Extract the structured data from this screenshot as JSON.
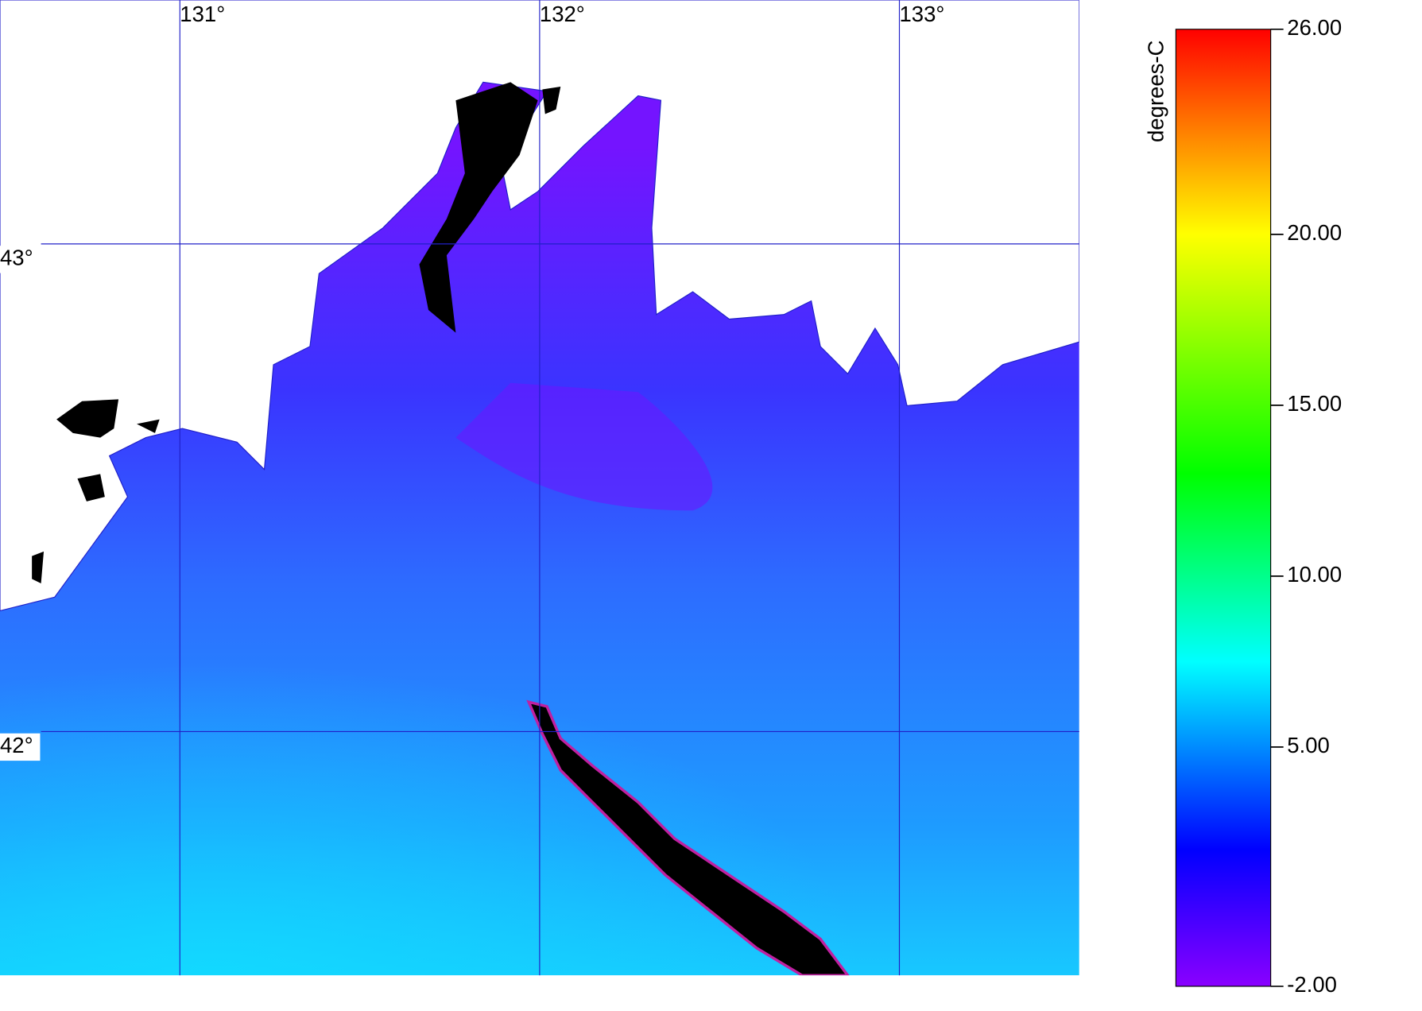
{
  "chart_data": {
    "type": "raster-map",
    "xlim": [
      130.5,
      133.5
    ],
    "ylim": [
      41.5,
      43.5
    ],
    "xticks": [
      {
        "value": 131,
        "label": "131°"
      },
      {
        "value": 132,
        "label": "132°"
      },
      {
        "value": 133,
        "label": "133°"
      }
    ],
    "yticks": [
      {
        "value": 43,
        "label": "43°"
      },
      {
        "value": 42,
        "label": "42°"
      }
    ],
    "grid": true,
    "grid_color": "#2020c8",
    "colorbar": {
      "label": "degrees-C",
      "lim": [
        -2,
        26
      ],
      "ticks": [
        {
          "value": 26,
          "label": "26.00"
        },
        {
          "value": 20,
          "label": "20.00"
        },
        {
          "value": 15,
          "label": "15.00"
        },
        {
          "value": 10,
          "label": "10.00"
        },
        {
          "value": 5,
          "label": "5.00"
        },
        {
          "value": -2,
          "label": "-2.00"
        }
      ],
      "colormap": [
        [
          -2,
          "#8a00ff"
        ],
        [
          2,
          "#0000ff"
        ],
        [
          7.5,
          "#00ffff"
        ],
        [
          13,
          "#00ff00"
        ],
        [
          20,
          "#ffff00"
        ],
        [
          23,
          "#ff8000"
        ],
        [
          26,
          "#ff0000"
        ]
      ]
    }
  }
}
